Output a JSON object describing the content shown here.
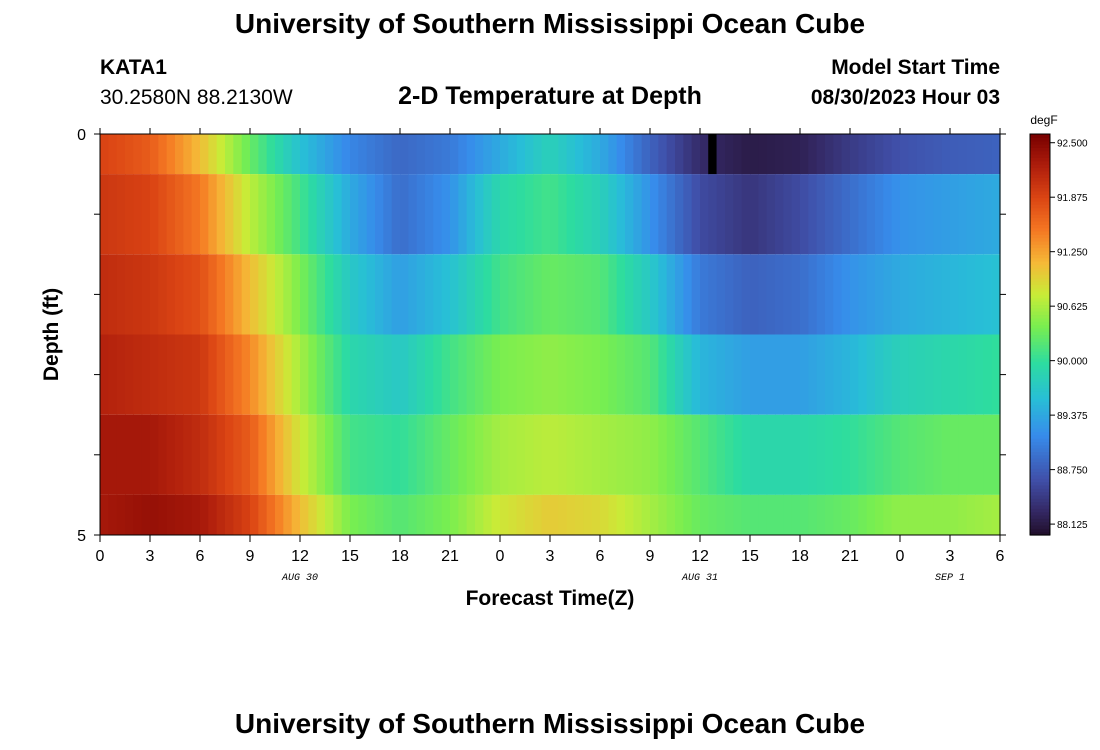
{
  "header": {
    "title": "University of Southern Mississippi Ocean Cube",
    "station": "KATA1",
    "coordinates": "30.2580N  88.2130W",
    "model_start_label": "Model Start Time",
    "model_start_value": "08/30/2023 Hour 03",
    "footer_title": "University of Southern Mississippi Ocean Cube"
  },
  "chart_data": {
    "type": "heatmap",
    "title": "2-D Temperature at Depth",
    "xlabel": "Forecast Time(Z)",
    "ylabel": "Depth (ft)",
    "x_start_hours": 0,
    "x_end_hours": 54,
    "x_tick_labels": [
      "0",
      "3",
      "6",
      "9",
      "12",
      "15",
      "18",
      "21",
      "0",
      "3",
      "6",
      "9",
      "12",
      "15",
      "18",
      "21",
      "0",
      "3",
      "6"
    ],
    "date_labels": [
      {
        "label": "AUG 30",
        "hour": 12
      },
      {
        "label": "AUG 31",
        "hour": 36
      },
      {
        "label": "SEP 1",
        "hour": 51
      }
    ],
    "y_tick_labels": [
      "0",
      "5"
    ],
    "ylim": [
      0,
      5
    ],
    "depth_layers": [
      {
        "top": 0.0,
        "bottom": 0.5
      },
      {
        "top": 0.5,
        "bottom": 1.5
      },
      {
        "top": 1.5,
        "bottom": 2.5
      },
      {
        "top": 2.5,
        "bottom": 3.5
      },
      {
        "top": 3.5,
        "bottom": 4.5
      },
      {
        "top": 4.5,
        "bottom": 5.0
      }
    ],
    "time_hours": [
      0,
      3,
      6,
      9,
      12,
      15,
      18,
      21,
      24,
      27,
      30,
      33,
      36,
      39,
      42,
      45,
      48,
      51,
      54
    ],
    "temperature_degF": [
      [
        91.9,
        91.7,
        91.1,
        90.3,
        89.6,
        89.1,
        88.85,
        89.0,
        89.4,
        89.8,
        89.4,
        88.8,
        88.3,
        88.15,
        88.2,
        88.45,
        88.65,
        88.75,
        88.8
      ],
      [
        92.0,
        91.9,
        91.5,
        90.7,
        90.1,
        89.4,
        88.9,
        89.2,
        89.9,
        90.1,
        89.8,
        89.2,
        88.6,
        88.4,
        88.6,
        88.9,
        89.2,
        89.3,
        89.4
      ],
      [
        92.1,
        92.0,
        91.8,
        91.1,
        90.4,
        89.7,
        89.3,
        89.6,
        90.1,
        90.3,
        90.2,
        89.7,
        89.0,
        88.8,
        88.9,
        89.2,
        89.4,
        89.5,
        89.6
      ],
      [
        92.2,
        92.1,
        92.0,
        91.4,
        90.6,
        89.9,
        89.7,
        90.1,
        90.4,
        90.5,
        90.4,
        90.2,
        89.5,
        89.3,
        89.3,
        89.5,
        89.8,
        89.9,
        90.0
      ],
      [
        92.3,
        92.3,
        92.1,
        91.7,
        90.8,
        90.1,
        90.0,
        90.3,
        90.6,
        90.7,
        90.6,
        90.5,
        90.2,
        89.9,
        89.9,
        90.0,
        90.2,
        90.3,
        90.3
      ],
      [
        92.3,
        92.4,
        92.3,
        91.9,
        91.1,
        90.4,
        90.2,
        90.4,
        90.8,
        91.0,
        90.9,
        90.6,
        90.3,
        90.2,
        90.2,
        90.3,
        90.5,
        90.5,
        90.6
      ]
    ],
    "missing_data_hour": 36.5,
    "colorbar": {
      "unit": "degF",
      "min": 88.0,
      "max": 92.6,
      "tick_labels": [
        "92.500",
        "91.875",
        "91.250",
        "90.625",
        "90.000",
        "89.375",
        "88.750",
        "88.125"
      ],
      "tick_values": [
        92.5,
        91.875,
        91.25,
        90.625,
        90.0,
        89.375,
        88.75,
        88.125
      ]
    }
  }
}
